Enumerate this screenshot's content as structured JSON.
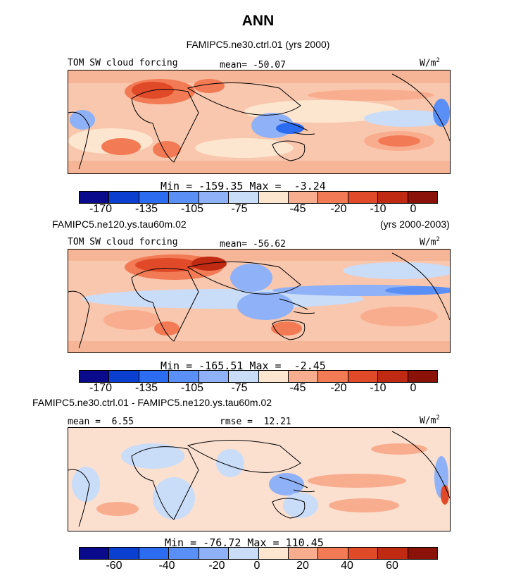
{
  "title": "ANN",
  "colors": {
    "abs_scale": [
      "#0a0a8c",
      "#0a3fd0",
      "#2c6cf0",
      "#5a8ff5",
      "#8fb1f7",
      "#c9dcf8",
      "#fde6cf",
      "#f9ad8f",
      "#f27a55",
      "#e04a28",
      "#c02a12",
      "#8a1208"
    ],
    "diff_scale": [
      "#0a0a8c",
      "#0a3fd0",
      "#2c6cf0",
      "#5a8ff5",
      "#8fb1f7",
      "#c9dcf8",
      "#fde6cf",
      "#f9ad8f",
      "#f27a55",
      "#e04a28",
      "#c02a12",
      "#8a1208"
    ]
  },
  "panel1": {
    "case_label": "FAMIPC5.ne30.ctrl.01 (yrs 2000)",
    "field": "TOM SW cloud forcing",
    "mean": "mean= -50.07",
    "units": "W/m",
    "units_sup": "2",
    "minmax": "Min = -159.35 Max =  -3.24",
    "ticks": [
      "-170",
      "-135",
      "-105",
      "-75",
      "-45",
      "-20",
      "-10",
      "0"
    ]
  },
  "panel2": {
    "case_label": "FAMIPC5.ne120.ys.tau60m.02",
    "years": "(yrs 2000-2003)",
    "field": "TOM SW cloud forcing",
    "mean": "mean= -56.62",
    "units": "W/m",
    "units_sup": "2",
    "minmax": "Min = -165.51 Max =  -2.45",
    "ticks": [
      "-170",
      "-135",
      "-105",
      "-75",
      "-45",
      "-20",
      "-10",
      "0"
    ]
  },
  "panel3": {
    "case_label": "FAMIPC5.ne30.ctrl.01 - FAMIPC5.ne120.ys.tau60m.02",
    "mean": "mean =  6.55",
    "rmse": "rmse =  12.21",
    "units": "W/m",
    "units_sup": "2",
    "minmax": "Min = -76.72 Max = 110.45",
    "ticks": [
      "-60",
      "-40",
      "-20",
      "0",
      "20",
      "40",
      "60"
    ]
  }
}
